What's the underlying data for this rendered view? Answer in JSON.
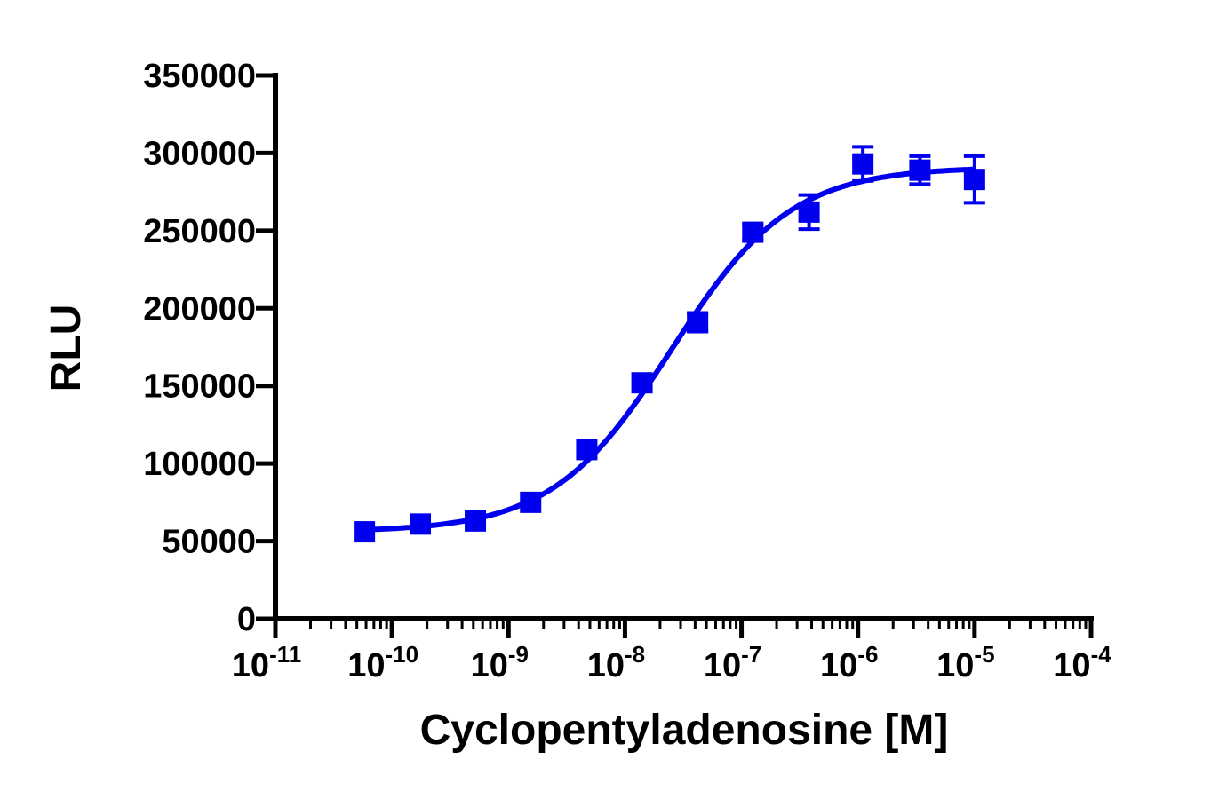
{
  "chart_data": {
    "type": "scatter",
    "title": "",
    "xlabel": "Cyclopentyladenosine [M]",
    "ylabel": "RLU",
    "xscale": "log10",
    "xlim_exponent": [
      -11,
      -4
    ],
    "ylim": [
      0,
      350000
    ],
    "y_ticks": [
      0,
      50000,
      100000,
      150000,
      200000,
      250000,
      300000,
      350000
    ],
    "y_tick_labels": [
      "0",
      "50000",
      "100000",
      "150000",
      "200000",
      "250000",
      "300000",
      "350000"
    ],
    "x_ticks": [
      {
        "exp": -11,
        "base": "10",
        "sup": "-11"
      },
      {
        "exp": -10,
        "base": "10",
        "sup": "-10"
      },
      {
        "exp": -9,
        "base": "10",
        "sup": "-9"
      },
      {
        "exp": -8,
        "base": "10",
        "sup": "-8"
      },
      {
        "exp": -7,
        "base": "10",
        "sup": "-7"
      },
      {
        "exp": -6,
        "base": "10",
        "sup": "-6"
      },
      {
        "exp": -5,
        "base": "10",
        "sup": "-5"
      },
      {
        "exp": -4,
        "base": "10",
        "sup": "-4"
      }
    ],
    "series": [
      {
        "name": "Cyclopentyladenosine",
        "color": "#0000ee",
        "marker": "square",
        "points": [
          {
            "x": 5.8e-11,
            "y": 56000,
            "err": 2000
          },
          {
            "x": 1.75e-10,
            "y": 61000,
            "err": 2000
          },
          {
            "x": 5.2e-10,
            "y": 63000,
            "err": 2000
          },
          {
            "x": 1.55e-09,
            "y": 75000,
            "err": 2000
          },
          {
            "x": 4.7e-09,
            "y": 109000,
            "err": 2000
          },
          {
            "x": 1.4e-08,
            "y": 152000,
            "err": 2000
          },
          {
            "x": 4.2e-08,
            "y": 191000,
            "err": 6000
          },
          {
            "x": 1.25e-07,
            "y": 249000,
            "err": 5000
          },
          {
            "x": 3.8e-07,
            "y": 262000,
            "err": 11000
          },
          {
            "x": 1.1e-06,
            "y": 293000,
            "err": 11000
          },
          {
            "x": 3.4e-06,
            "y": 289000,
            "err": 9000
          },
          {
            "x": 1e-05,
            "y": 283000,
            "err": 15000
          }
        ],
        "fit": {
          "model": "sigmoidal dose-response",
          "bottom": 56000,
          "top": 291000,
          "logEC50": -7.6,
          "hill": 0.85
        }
      }
    ]
  }
}
